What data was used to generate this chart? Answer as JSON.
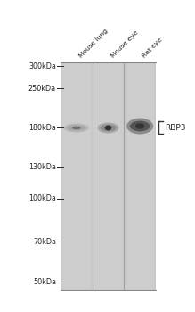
{
  "background_color": "#ffffff",
  "gel_bg_color": "#c8c8c8",
  "lane_bg_color": "#cbcbcb",
  "figure_width": 2.19,
  "figure_height": 3.5,
  "dpi": 100,
  "lanes": [
    "Mouse lung",
    "Mouse eye",
    "Rat eye"
  ],
  "mw_markers": [
    "300kDa",
    "250kDa",
    "180kDa",
    "130kDa",
    "100kDa",
    "70kDa",
    "50kDa"
  ],
  "mw_values": [
    300,
    250,
    180,
    130,
    100,
    70,
    50
  ],
  "band_mw": 180,
  "band_label": "RBP3",
  "gel_color": "#c8c8c8",
  "lane_color": "#cdcdcd",
  "tick_color": "#222222",
  "label_color": "#222222",
  "font_size_mw": 5.8,
  "font_size_lane": 5.4,
  "font_size_band": 6.5,
  "border_color": "#888888",
  "separator_color": "#999999"
}
